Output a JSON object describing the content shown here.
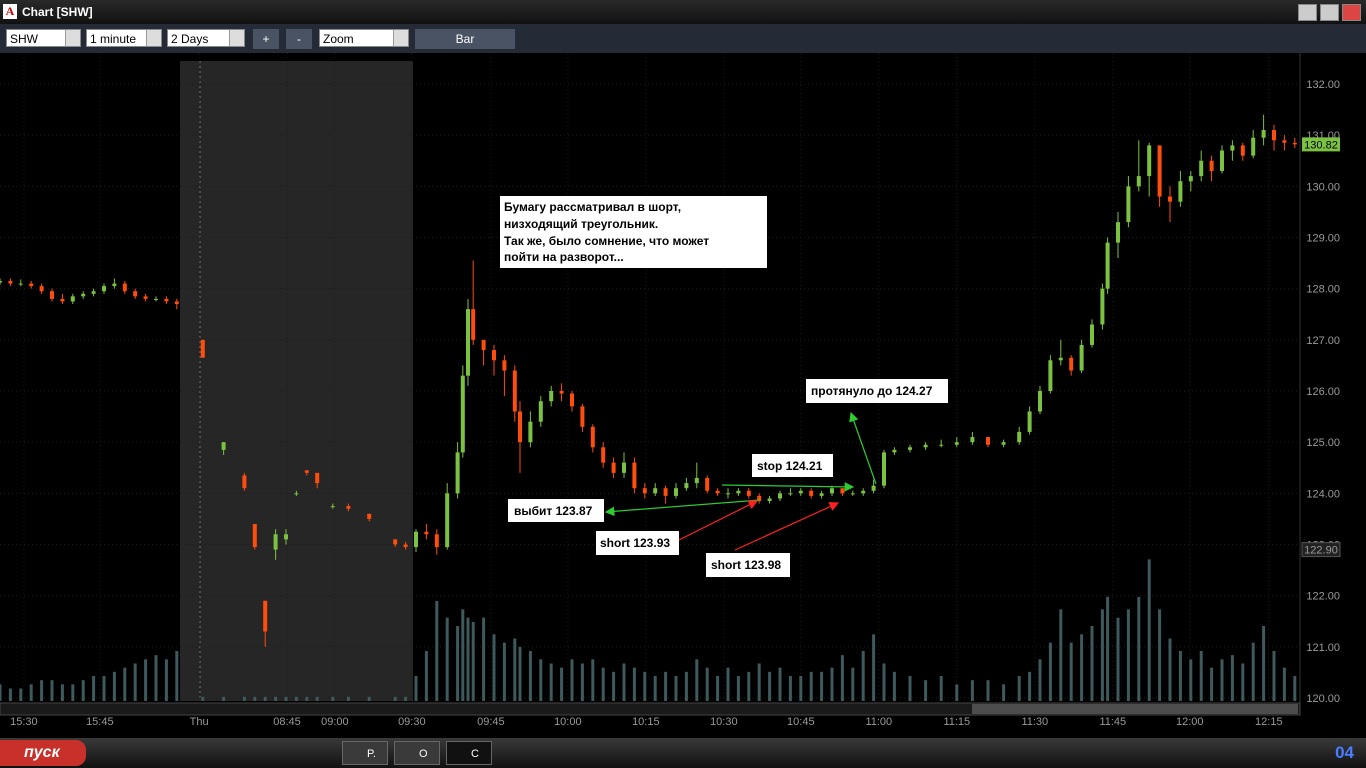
{
  "window": {
    "title": "Chart [SHW]"
  },
  "toolbar": {
    "symbol": "SHW",
    "interval": "1 minute",
    "range": "2 Days",
    "zoom_in": "+",
    "zoom_out": "-",
    "zoom": "Zoom",
    "style": "Bar"
  },
  "taskbar": {
    "start": "пуск",
    "tasks": [
      "P.",
      "O",
      "C"
    ],
    "clock": "04"
  },
  "chart_data": {
    "type": "candlestick",
    "ylim": [
      120,
      132
    ],
    "yticks": [
      {
        "value": 120,
        "label": "120.00"
      },
      {
        "value": 121,
        "label": "121.00"
      },
      {
        "value": 122,
        "label": "122.00"
      },
      {
        "value": 123,
        "label": "123.00"
      },
      {
        "value": 124,
        "label": "124.00"
      },
      {
        "value": 125,
        "label": "125.00"
      },
      {
        "value": 126,
        "label": "126.00"
      },
      {
        "value": 127,
        "label": "127.00"
      },
      {
        "value": 128,
        "label": "128.00"
      },
      {
        "value": 129,
        "label": "129.00"
      },
      {
        "value": 130,
        "label": "130.00"
      },
      {
        "value": 131,
        "label": "131.00"
      },
      {
        "value": 132,
        "label": "132.00"
      }
    ],
    "xlim": [
      0,
      250
    ],
    "xticks": [
      {
        "value": 4.6,
        "label": "15:30"
      },
      {
        "value": 19.2,
        "label": "15:45"
      },
      {
        "value": 38.3,
        "label": "Thu"
      },
      {
        "value": 55.2,
        "label": "08:45"
      },
      {
        "value": 64.4,
        "label": "09:00"
      },
      {
        "value": 79.2,
        "label": "09:30"
      },
      {
        "value": 94.4,
        "label": "09:45"
      },
      {
        "value": 109.2,
        "label": "10:00"
      },
      {
        "value": 124.2,
        "label": "10:15"
      },
      {
        "value": 139.2,
        "label": "10:30"
      },
      {
        "value": 154,
        "label": "10:45"
      },
      {
        "value": 169,
        "label": "11:00"
      },
      {
        "value": 184,
        "label": "11:15"
      },
      {
        "value": 199,
        "label": "11:30"
      },
      {
        "value": 214,
        "label": "11:45"
      },
      {
        "value": 228.8,
        "label": "12:00"
      },
      {
        "value": 244,
        "label": "12:15"
      }
    ],
    "up_color": "#7cc242",
    "down_color": "#ff4d0d",
    "volume_color": "#3e5a5c",
    "volume_lim": [
      0,
      60
    ],
    "price_markers": [
      130.82,
      {
        "value": 122.9,
        "label": "122.90"
      }
    ],
    "note": [
      "Бумагу рассматривал в шорт,",
      "низходящий треугольник.",
      "Так же, было сомнение, что может",
      "пойти на разворот..."
    ],
    "annotations": [
      "протянуло до 124.27",
      "stop 124.21",
      "выбит 123.87",
      "short 123.93",
      "short 123.98"
    ],
    "candles": [
      [
        0,
        128.12,
        128.2,
        128.08,
        128.15,
        4
      ],
      [
        2,
        128.15,
        128.2,
        128.05,
        128.1,
        3
      ],
      [
        4,
        128.1,
        128.18,
        128.05,
        128.1,
        3
      ],
      [
        6,
        128.1,
        128.15,
        128.0,
        128.05,
        4
      ],
      [
        8,
        128.05,
        128.1,
        127.9,
        127.95,
        5
      ],
      [
        10,
        127.95,
        128.0,
        127.75,
        127.8,
        5
      ],
      [
        12,
        127.8,
        127.9,
        127.7,
        127.75,
        4
      ],
      [
        14,
        127.75,
        127.9,
        127.7,
        127.85,
        4
      ],
      [
        16,
        127.85,
        127.95,
        127.8,
        127.9,
        5
      ],
      [
        18,
        127.9,
        128.0,
        127.85,
        127.95,
        6
      ],
      [
        20,
        127.95,
        128.1,
        127.9,
        128.05,
        6
      ],
      [
        22,
        128.05,
        128.2,
        128.0,
        128.1,
        7
      ],
      [
        24,
        128.1,
        128.15,
        127.9,
        127.95,
        8
      ],
      [
        26,
        127.95,
        128.0,
        127.8,
        127.85,
        9
      ],
      [
        28,
        127.85,
        127.9,
        127.75,
        127.8,
        10
      ],
      [
        30,
        127.8,
        127.85,
        127.75,
        127.8,
        11
      ],
      [
        32,
        127.8,
        127.85,
        127.7,
        127.75,
        10
      ],
      [
        34,
        127.75,
        127.8,
        127.6,
        127.7,
        12
      ],
      [
        39,
        127.0,
        127.0,
        126.65,
        126.65,
        1
      ],
      [
        43,
        124.85,
        125.0,
        124.75,
        125.0,
        1
      ],
      [
        47,
        124.35,
        124.4,
        124.05,
        124.1,
        1
      ],
      [
        49,
        123.4,
        123.4,
        122.9,
        122.95,
        1
      ],
      [
        51,
        121.9,
        121.9,
        121.0,
        121.3,
        1
      ],
      [
        53,
        122.9,
        123.3,
        122.7,
        123.2,
        1
      ],
      [
        55,
        123.1,
        123.3,
        123.0,
        123.2,
        1
      ],
      [
        57,
        124.0,
        124.05,
        123.95,
        124.0,
        1
      ],
      [
        59,
        124.45,
        124.45,
        124.35,
        124.4,
        1
      ],
      [
        61,
        124.4,
        124.4,
        124.1,
        124.2,
        1
      ],
      [
        64,
        123.75,
        123.8,
        123.7,
        123.75,
        1
      ],
      [
        67,
        123.75,
        123.8,
        123.65,
        123.7,
        1
      ],
      [
        71,
        123.6,
        123.6,
        123.45,
        123.5,
        1
      ],
      [
        76,
        123.1,
        123.1,
        122.95,
        123.0,
        1
      ],
      [
        78,
        123.0,
        123.05,
        122.9,
        122.95,
        1
      ],
      [
        80,
        122.95,
        123.3,
        122.85,
        123.25,
        6
      ],
      [
        82,
        123.25,
        123.4,
        123.1,
        123.2,
        12
      ],
      [
        84,
        123.2,
        123.3,
        122.8,
        122.95,
        24
      ],
      [
        86,
        122.95,
        124.2,
        122.9,
        124.0,
        20
      ],
      [
        88,
        124.0,
        125.0,
        123.9,
        124.8,
        18
      ],
      [
        89,
        124.8,
        126.5,
        124.7,
        126.3,
        22
      ],
      [
        90,
        126.3,
        127.8,
        126.1,
        127.6,
        20
      ],
      [
        91,
        127.6,
        128.55,
        126.9,
        127.0,
        19
      ],
      [
        93,
        127.0,
        127.0,
        126.5,
        126.8,
        20
      ],
      [
        95,
        126.8,
        126.9,
        126.3,
        126.6,
        16
      ],
      [
        97,
        126.6,
        126.7,
        125.9,
        126.4,
        14
      ],
      [
        99,
        126.4,
        126.5,
        125.4,
        125.6,
        15
      ],
      [
        100,
        125.6,
        125.8,
        124.4,
        125.0,
        13
      ],
      [
        102,
        125.0,
        125.6,
        124.9,
        125.4,
        12
      ],
      [
        104,
        125.4,
        125.9,
        125.3,
        125.8,
        10
      ],
      [
        106,
        125.8,
        126.1,
        125.7,
        126.0,
        9
      ],
      [
        108,
        126.0,
        126.15,
        125.8,
        125.95,
        8
      ],
      [
        110,
        125.95,
        126.0,
        125.6,
        125.7,
        10
      ],
      [
        112,
        125.7,
        125.75,
        125.2,
        125.3,
        9
      ],
      [
        114,
        125.3,
        125.35,
        124.8,
        124.9,
        10
      ],
      [
        116,
        124.9,
        125.0,
        124.5,
        124.6,
        8
      ],
      [
        118,
        124.6,
        124.7,
        124.3,
        124.4,
        7
      ],
      [
        120,
        124.4,
        124.8,
        124.3,
        124.6,
        9
      ],
      [
        122,
        124.6,
        124.7,
        124.0,
        124.1,
        8
      ],
      [
        124,
        124.1,
        124.2,
        123.9,
        124.0,
        7
      ],
      [
        126,
        124.0,
        124.2,
        123.95,
        124.1,
        6
      ],
      [
        128,
        124.1,
        124.15,
        123.8,
        123.95,
        7
      ],
      [
        130,
        123.95,
        124.2,
        123.9,
        124.1,
        6
      ],
      [
        132,
        124.1,
        124.3,
        124.05,
        124.2,
        7
      ],
      [
        134,
        124.2,
        124.6,
        124.1,
        124.3,
        10
      ],
      [
        136,
        124.3,
        124.35,
        124.0,
        124.05,
        8
      ],
      [
        138,
        124.05,
        124.1,
        123.95,
        124.0,
        6
      ],
      [
        140,
        124.0,
        124.1,
        123.9,
        124.0,
        8
      ],
      [
        142,
        124.0,
        124.1,
        123.95,
        124.05,
        6
      ],
      [
        144,
        124.05,
        124.1,
        123.9,
        123.95,
        7
      ],
      [
        146,
        123.95,
        124.0,
        123.8,
        123.85,
        9
      ],
      [
        148,
        123.85,
        123.95,
        123.8,
        123.9,
        7
      ],
      [
        150,
        123.9,
        124.05,
        123.85,
        124.0,
        8
      ],
      [
        152,
        124.0,
        124.1,
        123.95,
        124.0,
        6
      ],
      [
        154,
        124.0,
        124.1,
        123.95,
        124.05,
        6
      ],
      [
        156,
        124.05,
        124.1,
        123.9,
        123.95,
        7
      ],
      [
        158,
        123.95,
        124.05,
        123.9,
        124.0,
        7
      ],
      [
        160,
        124.0,
        124.15,
        123.95,
        124.1,
        8
      ],
      [
        162,
        124.1,
        124.1,
        123.95,
        124.0,
        11
      ],
      [
        164,
        124.0,
        124.05,
        123.95,
        124.0,
        8
      ],
      [
        166,
        124.0,
        124.1,
        123.95,
        124.05,
        12
      ],
      [
        168,
        124.05,
        124.27,
        124.0,
        124.15,
        16
      ],
      [
        170,
        124.15,
        124.85,
        124.1,
        124.8,
        9
      ],
      [
        172,
        124.8,
        124.9,
        124.75,
        124.85,
        7
      ],
      [
        175,
        124.85,
        124.95,
        124.8,
        124.9,
        6
      ],
      [
        178,
        124.9,
        125.0,
        124.85,
        124.95,
        5
      ],
      [
        181,
        124.95,
        125.05,
        124.9,
        124.95,
        6
      ],
      [
        184,
        124.95,
        125.1,
        124.9,
        125.0,
        4
      ],
      [
        187,
        125.0,
        125.2,
        124.95,
        125.1,
        5
      ],
      [
        190,
        125.1,
        125.1,
        124.9,
        124.95,
        5
      ],
      [
        193,
        124.95,
        125.05,
        124.9,
        125.0,
        4
      ],
      [
        196,
        125.0,
        125.3,
        124.95,
        125.2,
        6
      ],
      [
        198,
        125.2,
        125.7,
        125.15,
        125.6,
        7
      ],
      [
        200,
        125.6,
        126.1,
        125.55,
        126.0,
        10
      ],
      [
        202,
        126.0,
        126.7,
        125.95,
        126.6,
        14
      ],
      [
        204,
        126.6,
        127.0,
        126.5,
        126.65,
        22
      ],
      [
        206,
        126.65,
        126.7,
        126.3,
        126.4,
        14
      ],
      [
        208,
        126.4,
        127.0,
        126.35,
        126.9,
        16
      ],
      [
        210,
        126.9,
        127.4,
        126.85,
        127.3,
        18
      ],
      [
        212,
        127.3,
        128.1,
        127.2,
        128.0,
        22
      ],
      [
        213,
        128.0,
        129.0,
        127.9,
        128.9,
        25
      ],
      [
        215,
        128.9,
        129.5,
        128.6,
        129.3,
        20
      ],
      [
        217,
        129.3,
        130.2,
        129.2,
        130.0,
        22
      ],
      [
        219,
        130.0,
        130.9,
        129.9,
        130.2,
        25
      ],
      [
        221,
        130.2,
        130.85,
        129.8,
        130.8,
        34
      ],
      [
        223,
        130.8,
        130.8,
        129.6,
        129.8,
        22
      ],
      [
        225,
        129.8,
        130.0,
        129.3,
        129.7,
        15
      ],
      [
        227,
        129.7,
        130.3,
        129.6,
        130.1,
        12
      ],
      [
        229,
        130.1,
        130.3,
        129.9,
        130.2,
        10
      ],
      [
        231,
        130.2,
        130.7,
        130.1,
        130.5,
        12
      ],
      [
        233,
        130.5,
        130.6,
        130.1,
        130.3,
        8
      ],
      [
        235,
        130.3,
        130.8,
        130.25,
        130.7,
        10
      ],
      [
        237,
        130.7,
        130.9,
        130.5,
        130.8,
        11
      ],
      [
        239,
        130.8,
        130.85,
        130.5,
        130.6,
        9
      ],
      [
        241,
        130.6,
        131.1,
        130.55,
        130.95,
        14
      ],
      [
        243,
        130.95,
        131.4,
        130.8,
        131.1,
        18
      ],
      [
        245,
        131.1,
        131.2,
        130.7,
        130.9,
        12
      ],
      [
        247,
        130.9,
        131.0,
        130.7,
        130.85,
        8
      ],
      [
        249,
        130.85,
        130.95,
        130.75,
        130.82,
        6
      ]
    ]
  }
}
